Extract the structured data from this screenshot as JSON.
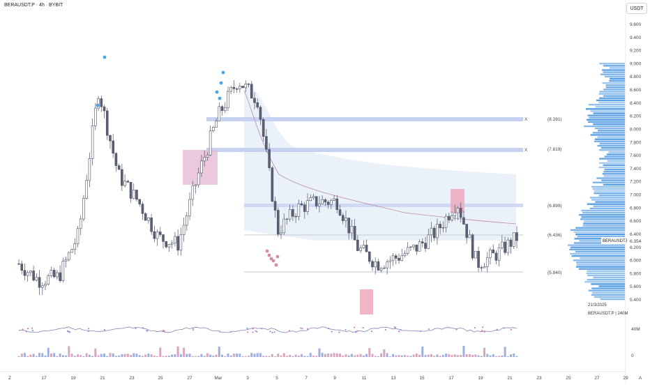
{
  "header": {
    "title": "BERAUSDT.P · 4h · BYBIT"
  },
  "price_axis": {
    "unit": "USDT",
    "ticks": [
      "9.600",
      "9.400",
      "9.200",
      "9.000",
      "8.800",
      "8.600",
      "8.400",
      "8.200",
      "8.000",
      "7.800",
      "7.600",
      "7.400",
      "7.200",
      "7.000",
      "6.800",
      "6.600",
      "6.400",
      "6.200",
      "6.000",
      "5.800",
      "5.600",
      "5.400"
    ],
    "current_label": "BERAUSDT.P",
    "current_value": "6.354",
    "volume_labels": [
      "40M",
      "0"
    ]
  },
  "time_axis": {
    "labels": [
      "Z",
      "17",
      "19",
      "21",
      "23",
      "25",
      "27",
      "Mar",
      "3",
      "5",
      "7",
      "9",
      "11",
      "13",
      "15",
      "17",
      "19",
      "21",
      "23",
      "25",
      "27",
      "29",
      "A"
    ]
  },
  "levels": [
    {
      "label": "(8.281)",
      "marker": "X"
    },
    {
      "label": "(7.819)",
      "marker": "X"
    },
    {
      "label": "(6.899)",
      "marker": ""
    },
    {
      "label": "(6.436)",
      "marker": ""
    },
    {
      "label": "(5.840)",
      "marker": ""
    }
  ],
  "profile_info": {
    "date": "21/3/2025",
    "name": "BERAUSDT.P | 240M"
  },
  "colors": {
    "candle": "#5b6073",
    "zone_blue": "#c9d4f2",
    "zone_pink": "#e8b6cc",
    "profile": "#3d8fe0",
    "cloud": "#e4ebf6"
  },
  "chart_data": {
    "type": "candlestick",
    "symbol": "BERAUSDT.P",
    "timeframe": "4h",
    "exchange": "BYBIT",
    "ylim": [
      5.2,
      9.7
    ],
    "x_dates": [
      "Feb 15",
      "Feb 17",
      "Feb 19",
      "Feb 21",
      "Feb 23",
      "Feb 25",
      "Feb 27",
      "Mar 1",
      "Mar 3",
      "Mar 5",
      "Mar 7",
      "Mar 9",
      "Mar 11",
      "Mar 13",
      "Mar 15",
      "Mar 17",
      "Mar 19",
      "Mar 21"
    ],
    "close_series": [
      5.95,
      5.7,
      5.75,
      6.4,
      8.6,
      7.3,
      6.9,
      6.35,
      6.25,
      7.3,
      8.2,
      8.75,
      8.45,
      6.45,
      6.8,
      6.9,
      6.9,
      6.2,
      5.95,
      6.05,
      6.2,
      6.45,
      6.9,
      5.95,
      6.1,
      6.35
    ],
    "horizontal_levels": [
      8.281,
      7.819,
      6.899,
      6.436,
      5.84
    ],
    "last_price": 6.354
  }
}
